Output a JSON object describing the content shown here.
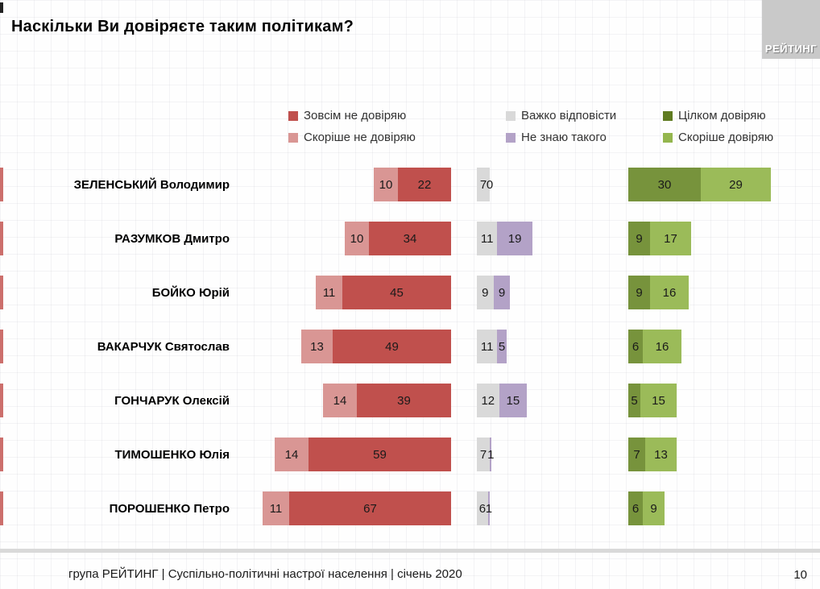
{
  "title": "Наскільки Ви довіряєте таким політикам?",
  "logo": {
    "text": "РЕЙТИНГ",
    "background": "#c9c9c9"
  },
  "legend": {
    "columns": [
      {
        "items": [
          {
            "label": "Зовсім не довіряю",
            "color": "#C0504D"
          },
          {
            "label": "Скоріше не довіряю",
            "color": "#D99694"
          }
        ]
      },
      {
        "items": [
          {
            "label": "Важко відповісти",
            "color": "#D9D9D9"
          },
          {
            "label": "Не знаю такого",
            "color": "#B3A2C7"
          }
        ]
      },
      {
        "items": [
          {
            "label": "Цілком довіряю",
            "color": "#5F7B21"
          },
          {
            "label": "Скоріше довіряю",
            "color": "#94B64E"
          }
        ]
      }
    ]
  },
  "chart_data": {
    "type": "bar",
    "orientation": "horizontal",
    "stacked_groups": [
      "distrust",
      "neutral",
      "trust"
    ],
    "unit": "percent",
    "categories": [
      "ЗЕЛЕНСЬКИЙ Володимир",
      "РАЗУМКОВ Дмитро",
      "БОЙКО Юрій",
      "ВАКАРЧУК Святослав",
      "ГОНЧАРУК Олексій",
      "ТИМОШЕНКО Юлія",
      "ПОРОШЕНКО Петро"
    ],
    "series": [
      {
        "name": "Скоріше не довіряю",
        "group": "distrust",
        "color": "#D99694",
        "values": [
          10,
          10,
          11,
          13,
          14,
          14,
          11
        ]
      },
      {
        "name": "Зовсім не довіряю",
        "group": "distrust",
        "color": "#C0504D",
        "values": [
          22,
          34,
          45,
          49,
          39,
          59,
          67
        ]
      },
      {
        "name": "Важко відповісти",
        "group": "neutral",
        "color": "#D9D9D9",
        "values": [
          7,
          11,
          9,
          11,
          12,
          7,
          6
        ]
      },
      {
        "name": "Не знаю такого",
        "group": "neutral",
        "color": "#B3A2C7",
        "values": [
          0,
          19,
          9,
          5,
          15,
          1,
          1
        ]
      },
      {
        "name": "Цілком довіряю",
        "group": "trust",
        "color": "#77933C",
        "values": [
          30,
          9,
          9,
          6,
          5,
          7,
          6
        ]
      },
      {
        "name": "Скоріше довіряю",
        "group": "trust",
        "color": "#9BBB59",
        "values": [
          29,
          17,
          16,
          16,
          15,
          13,
          9
        ]
      }
    ],
    "legend_position": "top",
    "grid": false,
    "value_labels": "inside"
  },
  "footer": {
    "source": "група РЕЙТИНГ | Суспільно-політичні настрої населення  | січень  2020",
    "page": "10"
  }
}
